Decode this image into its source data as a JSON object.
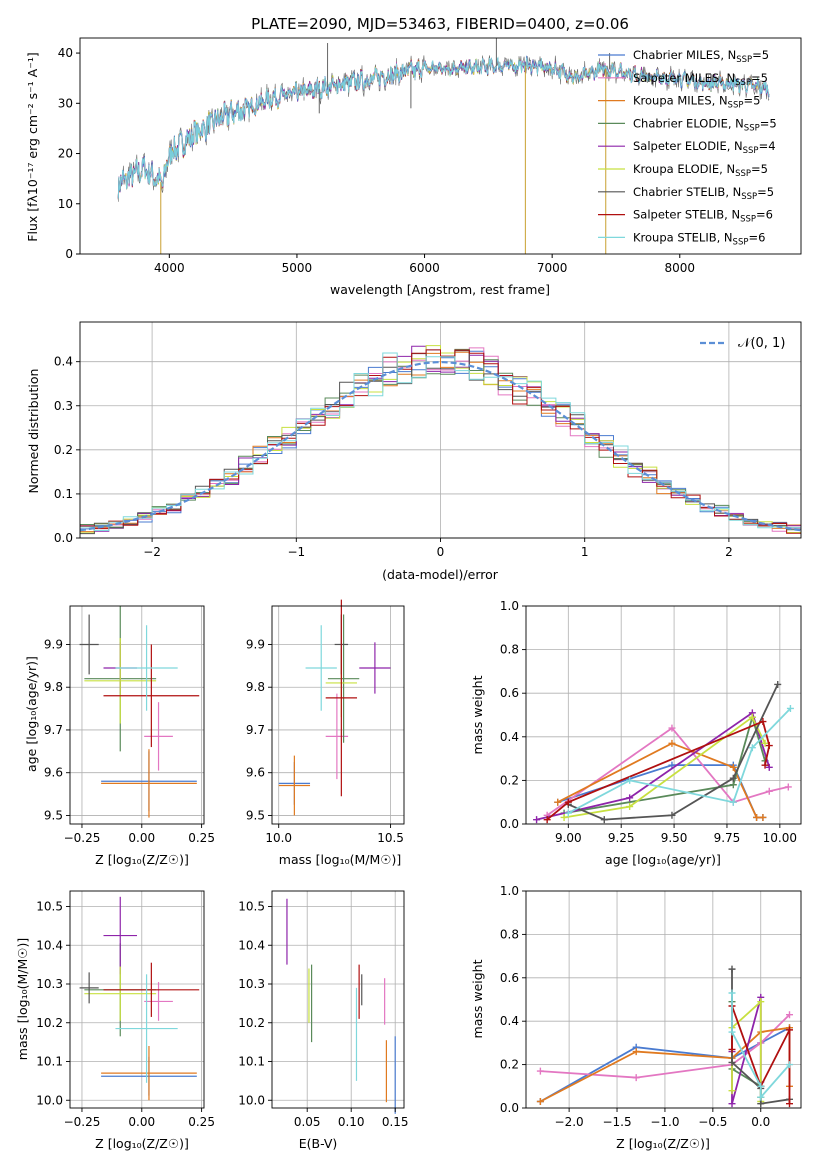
{
  "colors": {
    "Chabrier MILES": "#4a7bd0",
    "Salpeter MILES": "#e377c2",
    "Kroupa MILES": "#e07a20",
    "Chabrier ELODIE": "#5a8a5a",
    "Salpeter ELODIE": "#8e24aa",
    "Kroupa ELODIE": "#c8e040",
    "Chabrier STELIB": "#555555",
    "Salpeter STELIB": "#b01010",
    "Kroupa STELIB": "#7fd8dc"
  },
  "chart_data": [
    {
      "id": "spectrum",
      "type": "line",
      "title": "PLATE=2090, MJD=53463, FIBERID=0400, z=0.06",
      "xlabel": "wavelength [Angstrom, rest frame]",
      "ylabel": "Flux [fλ10⁻¹⁷ erg cm⁻² s⁻¹ A⁻¹]",
      "xlim": [
        3300,
        8950
      ],
      "ylim": [
        0,
        43
      ],
      "xticks": [
        "4000",
        "5000",
        "6000",
        "7000",
        "8000"
      ],
      "yticks": [
        "0",
        "10",
        "20",
        "30",
        "40"
      ],
      "legend": [
        {
          "name": "Chabrier MILES",
          "nssp": "5"
        },
        {
          "name": "Salpeter MILES",
          "nssp": "5"
        },
        {
          "name": "Kroupa MILES",
          "nssp": "5"
        },
        {
          "name": "Chabrier ELODIE",
          "nssp": "5"
        },
        {
          "name": "Salpeter ELODIE",
          "nssp": "4"
        },
        {
          "name": "Kroupa ELODIE",
          "nssp": "5"
        },
        {
          "name": "Chabrier STELIB",
          "nssp": "5"
        },
        {
          "name": "Salpeter STELIB",
          "nssp": "6"
        },
        {
          "name": "Kroupa STELIB",
          "nssp": "6"
        }
      ],
      "legend_suffix": "N",
      "legend_sub": "SSP",
      "continuum": [
        [
          3600,
          14
        ],
        [
          3800,
          17
        ],
        [
          3950,
          14
        ],
        [
          4000,
          20
        ],
        [
          4100,
          22
        ],
        [
          4200,
          24
        ],
        [
          4400,
          27
        ],
        [
          4600,
          29
        ],
        [
          4800,
          31
        ],
        [
          5000,
          32
        ],
        [
          5200,
          33
        ],
        [
          5400,
          34
        ],
        [
          5600,
          35
        ],
        [
          5800,
          36
        ],
        [
          6000,
          37
        ],
        [
          6200,
          37
        ],
        [
          6400,
          37
        ],
        [
          6600,
          37.5
        ],
        [
          6800,
          37.5
        ],
        [
          7000,
          37
        ],
        [
          7200,
          35
        ],
        [
          7300,
          36
        ],
        [
          7400,
          37
        ],
        [
          7600,
          36
        ],
        [
          7800,
          35
        ],
        [
          8000,
          35
        ],
        [
          8200,
          34
        ],
        [
          8400,
          34
        ],
        [
          8700,
          33
        ]
      ],
      "spikes": [
        [
          3933,
          0
        ],
        [
          5240,
          42
        ],
        [
          6563,
          43
        ],
        [
          6790,
          0
        ],
        [
          7420,
          0
        ],
        [
          7450,
          40
        ],
        [
          5893,
          29
        ],
        [
          5175,
          28
        ],
        [
          4305,
          24
        ]
      ]
    },
    {
      "id": "residuals",
      "type": "histogram",
      "xlabel": "(data-model)/error",
      "ylabel": "Normed distribution",
      "xlim": [
        -2.5,
        2.5
      ],
      "ylim": [
        0,
        0.49
      ],
      "xticks": [
        "−2",
        "−1",
        "0",
        "1",
        "2"
      ],
      "yticks": [
        "0.0",
        "0.1",
        "0.2",
        "0.3",
        "0.4"
      ],
      "normal_label": "𝒩(0, 1)",
      "bin_width": 0.1
    },
    {
      "id": "age_vs_Z",
      "type": "errorbar",
      "xlabel": "Z [log₁₀(Z/Z☉)]",
      "ylabel": "age  [log₁₀(age/yr)]",
      "xlim": [
        -0.3,
        0.26
      ],
      "ylim": [
        9.48,
        9.99
      ],
      "xticks": [
        "−0.25",
        "0.00",
        "0.25"
      ],
      "yticks": [
        "9.5",
        "9.6",
        "9.7",
        "9.8",
        "9.9"
      ],
      "points": [
        {
          "model": "Chabrier MILES",
          "x": 0.03,
          "y": 9.58,
          "xerr": 0.2,
          "yerr": 0.07
        },
        {
          "model": "Salpeter MILES",
          "x": 0.07,
          "y": 9.685,
          "xerr": 0.06,
          "yerr": 0.08
        },
        {
          "model": "Kroupa MILES",
          "x": 0.03,
          "y": 9.575,
          "xerr": 0.2,
          "yerr": 0.08
        },
        {
          "model": "Chabrier ELODIE",
          "x": -0.09,
          "y": 9.82,
          "xerr": 0.15,
          "yerr": 0.17
        },
        {
          "model": "Salpeter ELODIE",
          "x": -0.09,
          "y": 9.845,
          "xerr": 0.07,
          "yerr": 0.06
        },
        {
          "model": "Kroupa ELODIE",
          "x": -0.09,
          "y": 9.815,
          "xerr": 0.15,
          "yerr": 0.1
        },
        {
          "model": "Chabrier STELIB",
          "x": -0.22,
          "y": 9.9,
          "xerr": 0.04,
          "yerr": 0.07
        },
        {
          "model": "Salpeter STELIB",
          "x": 0.04,
          "y": 9.78,
          "xerr": 0.2,
          "yerr": 0.12
        },
        {
          "model": "Kroupa STELIB",
          "x": 0.02,
          "y": 9.845,
          "xerr": 0.13,
          "yerr": 0.1
        }
      ]
    },
    {
      "id": "age_vs_mass",
      "type": "errorbar",
      "xlabel": "mass [log₁₀(M/M☉)]",
      "ylabel": "",
      "xlim": [
        9.97,
        10.56
      ],
      "ylim": [
        9.48,
        9.99
      ],
      "xticks": [
        "10.0",
        "10.5"
      ],
      "yticks": [
        "9.5",
        "9.6",
        "9.7",
        "9.8",
        "9.9"
      ],
      "points": [
        {
          "model": "Chabrier MILES",
          "x": 10.07,
          "y": 9.575,
          "xerr": 0.07,
          "yerr": 0.05
        },
        {
          "model": "Salpeter MILES",
          "x": 10.26,
          "y": 9.685,
          "xerr": 0.05,
          "yerr": 0.1
        },
        {
          "model": "Kroupa MILES",
          "x": 10.07,
          "y": 9.57,
          "xerr": 0.07,
          "yerr": 0.07
        },
        {
          "model": "Chabrier ELODIE",
          "x": 10.29,
          "y": 9.82,
          "xerr": 0.07,
          "yerr": 0.15
        },
        {
          "model": "Salpeter ELODIE",
          "x": 10.43,
          "y": 9.845,
          "xerr": 0.07,
          "yerr": 0.06
        },
        {
          "model": "Kroupa ELODIE",
          "x": 10.28,
          "y": 9.81,
          "xerr": 0.07,
          "yerr": 0.08
        },
        {
          "model": "Chabrier STELIB",
          "x": 10.28,
          "y": 9.9,
          "xerr": 0.03,
          "yerr": 0.07
        },
        {
          "model": "Salpeter STELIB",
          "x": 10.28,
          "y": 9.775,
          "xerr": 0.07,
          "yerr": 0.23
        },
        {
          "model": "Kroupa STELIB",
          "x": 10.19,
          "y": 9.845,
          "xerr": 0.07,
          "yerr": 0.1
        }
      ]
    },
    {
      "id": "massweight_vs_age",
      "type": "line",
      "xlabel": "age  [log₁₀(age/yr)]",
      "ylabel": "mass weight",
      "xlim": [
        8.8,
        10.1
      ],
      "ylim": [
        0,
        1
      ],
      "xticks": [
        "9.00",
        "9.25",
        "9.50",
        "9.75",
        "10.00"
      ],
      "yticks": [
        "0.0",
        "0.2",
        "0.4",
        "0.6",
        "0.8",
        "1.0"
      ],
      "series": [
        {
          "model": "Chabrier MILES",
          "x": [
            8.95,
            9.49,
            9.78,
            9.89,
            9.92
          ],
          "y": [
            0.1,
            0.27,
            0.27,
            0.03,
            0.03
          ]
        },
        {
          "model": "Salpeter MILES",
          "x": [
            8.9,
            9.49,
            9.78,
            9.95,
            10.04
          ],
          "y": [
            0.04,
            0.44,
            0.1,
            0.15,
            0.17
          ]
        },
        {
          "model": "Kroupa MILES",
          "x": [
            8.95,
            9.49,
            9.78,
            9.89,
            9.92
          ],
          "y": [
            0.1,
            0.37,
            0.26,
            0.03,
            0.03
          ]
        },
        {
          "model": "Chabrier ELODIE",
          "x": [
            8.98,
            9.78,
            9.87,
            9.93
          ],
          "y": [
            0.05,
            0.18,
            0.49,
            0.29
          ]
        },
        {
          "model": "Salpeter ELODIE",
          "x": [
            8.85,
            9.29,
            9.87,
            9.95
          ],
          "y": [
            0.02,
            0.12,
            0.51,
            0.26
          ]
        },
        {
          "model": "Kroupa ELODIE",
          "x": [
            8.98,
            9.29,
            9.87,
            9.93
          ],
          "y": [
            0.03,
            0.08,
            0.49,
            0.37
          ]
        },
        {
          "model": "Chabrier STELIB",
          "x": [
            9.0,
            9.17,
            9.49,
            9.78,
            9.99
          ],
          "y": [
            0.09,
            0.02,
            0.04,
            0.21,
            0.64
          ]
        },
        {
          "model": "Salpeter STELIB",
          "x": [
            8.9,
            9.0,
            9.92,
            9.95,
            9.93
          ],
          "y": [
            0.02,
            0.1,
            0.47,
            0.36,
            0.27
          ]
        },
        {
          "model": "Kroupa STELIB",
          "x": [
            9.0,
            9.29,
            9.78,
            9.87,
            10.05
          ],
          "y": [
            0.05,
            0.2,
            0.1,
            0.35,
            0.53
          ]
        }
      ]
    },
    {
      "id": "mass_vs_Z",
      "type": "errorbar",
      "xlabel": "Z [log₁₀(Z/Z☉)]",
      "ylabel": "mass [log₁₀(M/M☉)]",
      "xlim": [
        -0.3,
        0.26
      ],
      "ylim": [
        9.98,
        10.54
      ],
      "xticks": [
        "−0.25",
        "0.00",
        "0.25"
      ],
      "yticks": [
        "10.0",
        "10.1",
        "10.2",
        "10.3",
        "10.4",
        "10.5"
      ],
      "points": [
        {
          "model": "Chabrier MILES",
          "x": 0.03,
          "y": 10.062,
          "xerr": 0.2,
          "yerr": 0.05
        },
        {
          "model": "Salpeter MILES",
          "x": 0.07,
          "y": 10.255,
          "xerr": 0.06,
          "yerr": 0.05
        },
        {
          "model": "Kroupa MILES",
          "x": 0.03,
          "y": 10.07,
          "xerr": 0.2,
          "yerr": 0.07
        },
        {
          "model": "Chabrier ELODIE",
          "x": -0.09,
          "y": 10.285,
          "xerr": 0.15,
          "yerr": 0.12
        },
        {
          "model": "Salpeter ELODIE",
          "x": -0.09,
          "y": 10.425,
          "xerr": 0.07,
          "yerr": 0.1
        },
        {
          "model": "Kroupa ELODIE",
          "x": -0.09,
          "y": 10.275,
          "xerr": 0.15,
          "yerr": 0.07
        },
        {
          "model": "Chabrier STELIB",
          "x": -0.22,
          "y": 10.29,
          "xerr": 0.04,
          "yerr": 0.04
        },
        {
          "model": "Salpeter STELIB",
          "x": 0.04,
          "y": 10.285,
          "xerr": 0.2,
          "yerr": 0.07
        },
        {
          "model": "Kroupa STELIB",
          "x": 0.02,
          "y": 10.185,
          "xerr": 0.13,
          "yerr": 0.14
        }
      ]
    },
    {
      "id": "mass_vs_ebv",
      "type": "errorbar",
      "xlabel": "E(B-V)",
      "ylabel": "",
      "xlim": [
        0.01,
        0.16
      ],
      "ylim": [
        9.98,
        10.54
      ],
      "xticks": [
        "0.05",
        "0.10",
        "0.15"
      ],
      "yticks": [
        "10.0",
        "10.1",
        "10.2",
        "10.3",
        "10.4",
        "10.5"
      ],
      "points": [
        {
          "model": "Chabrier MILES",
          "x": 0.15,
          "y": 10.065,
          "xerr": 0,
          "yerr": 0.1
        },
        {
          "model": "Salpeter MILES",
          "x": 0.138,
          "y": 10.255,
          "xerr": 0,
          "yerr": 0.06
        },
        {
          "model": "Kroupa MILES",
          "x": 0.14,
          "y": 10.075,
          "xerr": 0,
          "yerr": 0.08
        },
        {
          "model": "Chabrier ELODIE",
          "x": 0.055,
          "y": 10.25,
          "xerr": 0,
          "yerr": 0.1
        },
        {
          "model": "Salpeter ELODIE",
          "x": 0.027,
          "y": 10.435,
          "xerr": 0,
          "yerr": 0.085
        },
        {
          "model": "Kroupa ELODIE",
          "x": 0.052,
          "y": 10.27,
          "xerr": 0,
          "yerr": 0.07
        },
        {
          "model": "Chabrier STELIB",
          "x": 0.112,
          "y": 10.285,
          "xerr": 0,
          "yerr": 0.04
        },
        {
          "model": "Salpeter STELIB",
          "x": 0.109,
          "y": 10.28,
          "xerr": 0,
          "yerr": 0.07
        },
        {
          "model": "Kroupa STELIB",
          "x": 0.106,
          "y": 10.17,
          "xerr": 0,
          "yerr": 0.12
        }
      ]
    },
    {
      "id": "massweight_vs_Z",
      "type": "line",
      "xlabel": "Z [log₁₀(Z/Z☉)]",
      "ylabel": "mass weight",
      "xlim": [
        -2.45,
        0.42
      ],
      "ylim": [
        0,
        1
      ],
      "xticks": [
        "−2.0",
        "−1.5",
        "−1.0",
        "−0.5",
        "0.0"
      ],
      "yticks": [
        "0.0",
        "0.2",
        "0.4",
        "0.6",
        "0.8",
        "1.0"
      ],
      "series": [
        {
          "model": "Chabrier MILES",
          "x": [
            -2.3,
            -1.3,
            -0.3,
            0.0,
            0.3
          ],
          "y": [
            0.03,
            0.28,
            0.23,
            0.3,
            0.37
          ]
        },
        {
          "model": "Salpeter MILES",
          "x": [
            -2.3,
            -1.3,
            -0.3,
            0.0,
            0.3
          ],
          "y": [
            0.17,
            0.14,
            0.2,
            0.3,
            0.43
          ]
        },
        {
          "model": "Kroupa MILES",
          "x": [
            -2.3,
            -1.3,
            -0.3,
            0.0,
            0.3,
            0.3
          ],
          "y": [
            0.03,
            0.26,
            0.23,
            0.35,
            0.37,
            0.1
          ]
        },
        {
          "model": "Chabrier ELODIE",
          "x": [
            -0.3,
            -0.3,
            0.0,
            0.0
          ],
          "y": [
            0.49,
            0.18,
            0.1,
            0.05
          ]
        },
        {
          "model": "Salpeter ELODIE",
          "x": [
            -0.3,
            -0.3,
            0.0,
            0.0
          ],
          "y": [
            0.26,
            0.02,
            0.51,
            0.12
          ]
        },
        {
          "model": "Kroupa ELODIE",
          "x": [
            -0.3,
            -0.3,
            0.0,
            0.0
          ],
          "y": [
            0.08,
            0.37,
            0.49,
            0.03
          ]
        },
        {
          "model": "Chabrier STELIB",
          "x": [
            -0.3,
            -0.3,
            0.0,
            0.0,
            0.3
          ],
          "y": [
            0.64,
            0.21,
            0.09,
            0.02,
            0.04
          ]
        },
        {
          "model": "Salpeter STELIB",
          "x": [
            -0.3,
            -0.3,
            0.0,
            0.3,
            0.3
          ],
          "y": [
            0.27,
            0.47,
            0.1,
            0.36,
            0.02
          ]
        },
        {
          "model": "Kroupa STELIB",
          "x": [
            -0.3,
            -0.3,
            0.0,
            0.0,
            0.3
          ],
          "y": [
            0.53,
            0.35,
            0.1,
            0.05,
            0.2
          ]
        }
      ]
    }
  ]
}
